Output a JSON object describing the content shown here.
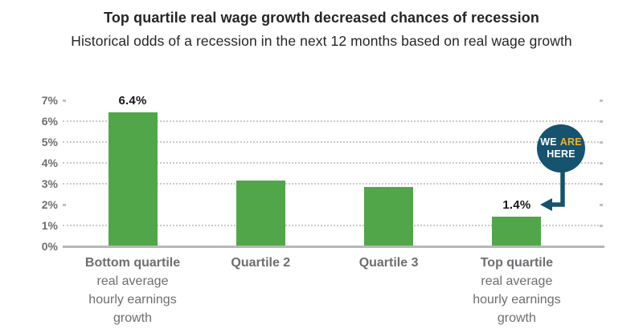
{
  "header": {
    "title": "Top quartile real wage growth decreased chances of recession",
    "subtitle": "Historical odds of a recession in the next 12 months based on real wage growth"
  },
  "chart_data": {
    "type": "bar",
    "title": "Top quartile real wage growth decreased chances of recession",
    "subtitle": "Historical odds of a recession in the next 12 months based on real wage growth",
    "xlabel": "",
    "ylabel": "",
    "ylim": [
      0,
      7
    ],
    "y_ticks": [
      "7%",
      "6%",
      "5%",
      "4%",
      "3%",
      "2%",
      "1%",
      "0%"
    ],
    "categories": [
      {
        "lines": [
          "Bottom quartile",
          "real average",
          "hourly earnings",
          "growth"
        ]
      },
      {
        "lines": [
          "Quartile 2"
        ]
      },
      {
        "lines": [
          "Quartile 3"
        ]
      },
      {
        "lines": [
          "Top quartile",
          "real average",
          "hourly earnings",
          "growth"
        ]
      }
    ],
    "values": [
      6.4,
      3.1,
      2.8,
      1.4
    ],
    "bar_labels": [
      "6.4%",
      "",
      "",
      "1.4%"
    ],
    "grid_full_pct": [
      1,
      3,
      4,
      5,
      6
    ],
    "grid_tick_only_pct": [
      2,
      7
    ],
    "legend": "none",
    "annotation": {
      "we": "WE",
      "are": "ARE",
      "here": "HERE",
      "points_to": "Top quartile bar (1.4%)"
    }
  },
  "colors": {
    "bar_green": "#52a64a",
    "badge_teal": "#15536f",
    "badge_yellow": "#f2b322",
    "title_text": "#262626",
    "axis_text": "#6d6e71",
    "gridline": "#c9cacc",
    "axis_line": "#b5b7b9",
    "value_label": "#161616"
  }
}
